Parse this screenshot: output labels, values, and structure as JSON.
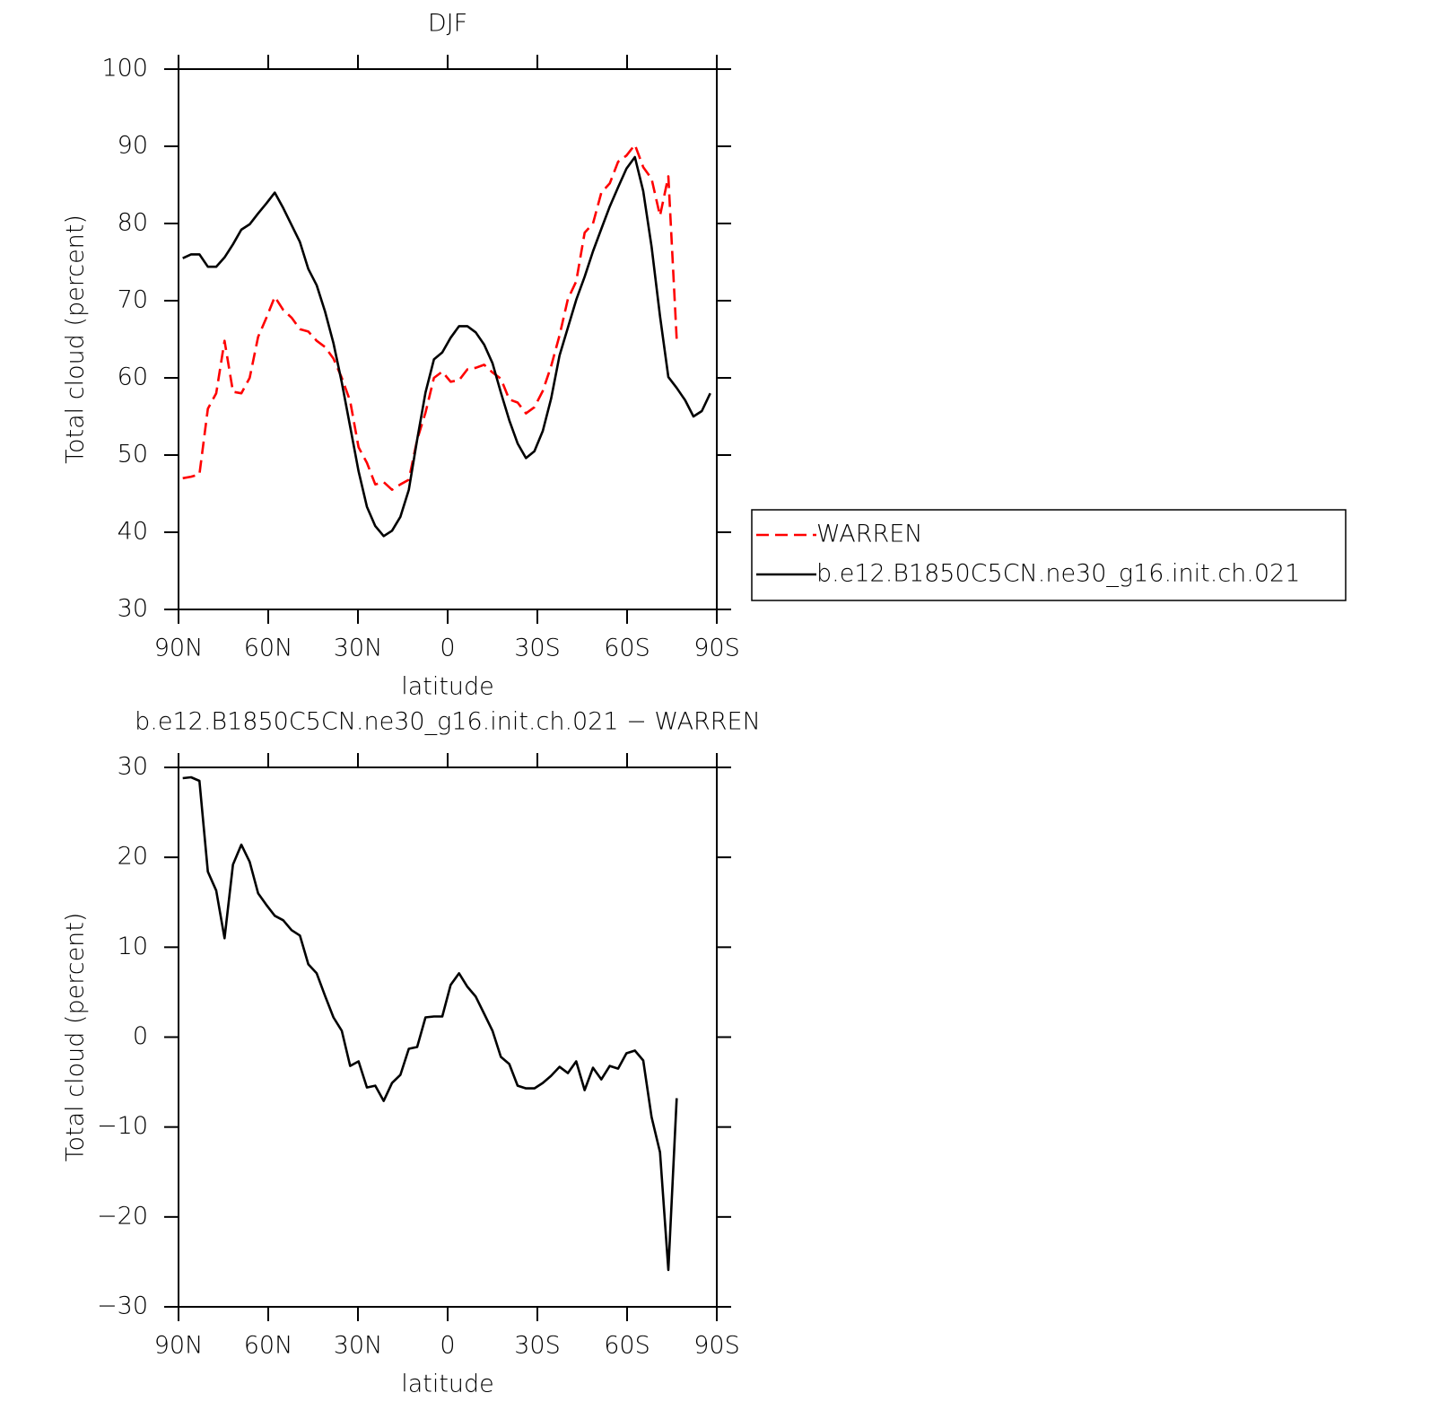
{
  "chart_data": [
    {
      "type": "line",
      "title": "DJF",
      "xlabel": "latitude",
      "ylabel": "Total cloud (percent)",
      "xlim": [
        90,
        -90
      ],
      "xticks": [
        {
          "value": 90,
          "label": "90N"
        },
        {
          "value": 60,
          "label": "60N"
        },
        {
          "value": 30,
          "label": "30N"
        },
        0,
        {
          "value": -30,
          "label": "30S"
        },
        {
          "value": -60,
          "label": "60S"
        },
        {
          "value": -90,
          "label": "90S"
        }
      ],
      "ylim": [
        30,
        100
      ],
      "yticks": [
        30,
        40,
        50,
        60,
        70,
        80,
        90,
        100
      ],
      "legend": "right",
      "x": [
        88.6,
        85.8,
        83,
        80.2,
        77.4,
        74.6,
        71.8,
        69,
        66.2,
        63.4,
        60.6,
        57.8,
        55,
        52.2,
        49.4,
        46.6,
        43.8,
        41,
        38.2,
        35.4,
        32.6,
        29.8,
        27,
        24.2,
        21.4,
        18.6,
        15.8,
        13,
        10.2,
        7.4,
        4.6,
        1.8,
        -1,
        -3.8,
        -6.6,
        -9.4,
        -12.2,
        -15,
        -17.8,
        -20.6,
        -23.4,
        -26.2,
        -29,
        -31.8,
        -34.6,
        -37.4,
        -40.2,
        -43,
        -45.8,
        -48.6,
        -51.4,
        -54.2,
        -57,
        -59.8,
        -62.6,
        -65.4,
        -68.2,
        -71,
        -73.8,
        -76.6,
        -79.4,
        -82.2,
        -85,
        -87.8
      ],
      "series": [
        {
          "name": "WARREN",
          "color": "#ff0000",
          "line_style": "dashed",
          "values": [
            47,
            47.2,
            47.5,
            56,
            58,
            64.8,
            58.2,
            58,
            60,
            65.3,
            67.8,
            70.5,
            68.8,
            67.8,
            66.3,
            66,
            64.8,
            64,
            62.5,
            60,
            57,
            51,
            49,
            46.2,
            46.5,
            45.5,
            46.2,
            46.8,
            52,
            55.5,
            60,
            60.8,
            59.5,
            59.7,
            61.1,
            61.3,
            61.7,
            60.7,
            59.9,
            57.2,
            56.8,
            55.4,
            56.2,
            58.3,
            61.5,
            65.5,
            70.2,
            72.5,
            78.8,
            80,
            84,
            85.2,
            88,
            88.8,
            90.2,
            87.3,
            85.8,
            81,
            86.1,
            65,
            null,
            null,
            null,
            null
          ]
        },
        {
          "name": "b.e12.B1850C5CN.ne30_g16.init.ch.021",
          "color": "#000000",
          "line_style": "solid",
          "values": [
            75.5,
            76,
            76,
            74.4,
            74.4,
            75.6,
            77.3,
            79.2,
            79.9,
            81.3,
            82.6,
            84,
            82,
            79.8,
            77.6,
            74.1,
            72,
            68.6,
            64.5,
            59.4,
            53.7,
            47.9,
            43.3,
            40.8,
            39.5,
            40.2,
            42,
            45.5,
            52,
            58.1,
            62.4,
            63.3,
            65.2,
            66.7,
            66.7,
            65.9,
            64.3,
            61.9,
            58.1,
            54.5,
            51.5,
            49.6,
            50.5,
            53.1,
            57.3,
            62.9,
            66.5,
            70.1,
            73.1,
            76.4,
            79.3,
            82.2,
            84.7,
            87.1,
            88.6,
            84.2,
            77,
            68,
            60.1,
            58.7,
            57.1,
            55,
            55.7,
            58
          ]
        }
      ]
    },
    {
      "type": "line",
      "title": "b.e12.B1850C5CN.ne30_g16.init.ch.021 − WARREN",
      "xlabel": "latitude",
      "ylabel": "Total cloud (percent)",
      "xlim": [
        90,
        -90
      ],
      "xticks": [
        {
          "value": 90,
          "label": "90N"
        },
        {
          "value": 60,
          "label": "60N"
        },
        {
          "value": 30,
          "label": "30N"
        },
        0,
        {
          "value": -30,
          "label": "30S"
        },
        {
          "value": -60,
          "label": "60S"
        },
        {
          "value": -90,
          "label": "90S"
        }
      ],
      "ylim": [
        -30,
        30
      ],
      "yticks": [
        {
          "value": -30,
          "label": "−30"
        },
        {
          "value": -20,
          "label": "−20"
        },
        {
          "value": -10,
          "label": "−10"
        },
        0,
        10,
        20,
        30
      ],
      "x": [
        88.6,
        85.8,
        83,
        80.2,
        77.4,
        74.6,
        71.8,
        69,
        66.2,
        63.4,
        60.6,
        57.8,
        55,
        52.2,
        49.4,
        46.6,
        43.8,
        41,
        38.2,
        35.4,
        32.6,
        29.8,
        27,
        24.2,
        21.4,
        18.6,
        15.8,
        13,
        10.2,
        7.4,
        4.6,
        1.8,
        -1,
        -3.8,
        -6.6,
        -9.4,
        -12.2,
        -15,
        -17.8,
        -20.6,
        -23.4,
        -26.2,
        -29,
        -31.8,
        -34.6,
        -37.4,
        -40.2,
        -43,
        -45.8,
        -48.6,
        -51.4,
        -54.2,
        -57,
        -59.8,
        -62.6,
        -65.4,
        -68.2,
        -71,
        -73.8,
        -76.6,
        -79.4,
        -82.2,
        -85,
        -87.8
      ],
      "color": "#000000",
      "values": [
        28.8,
        28.9,
        28.5,
        18.4,
        16.3,
        11,
        19.2,
        21.4,
        19.5,
        16,
        14.7,
        13.5,
        13,
        11.9,
        11.3,
        8.1,
        7.1,
        4.6,
        2.2,
        0.7,
        -3.2,
        -2.7,
        -5.6,
        -5.4,
        -7.1,
        -5.1,
        -4.2,
        -1.3,
        -1.1,
        2.2,
        2.3,
        2.3,
        5.8,
        7.1,
        5.6,
        4.5,
        2.6,
        0.7,
        -2.2,
        -3,
        -5.4,
        -5.7,
        -5.7,
        -5.1,
        -4.3,
        -3.3,
        -4,
        -2.7,
        -5.9,
        -3.4,
        -4.7,
        -3.2,
        -3.5,
        -1.8,
        -1.5,
        -2.6,
        -8.9,
        -12.8,
        -25.9,
        -6.8,
        null,
        null,
        null,
        null
      ]
    }
  ]
}
